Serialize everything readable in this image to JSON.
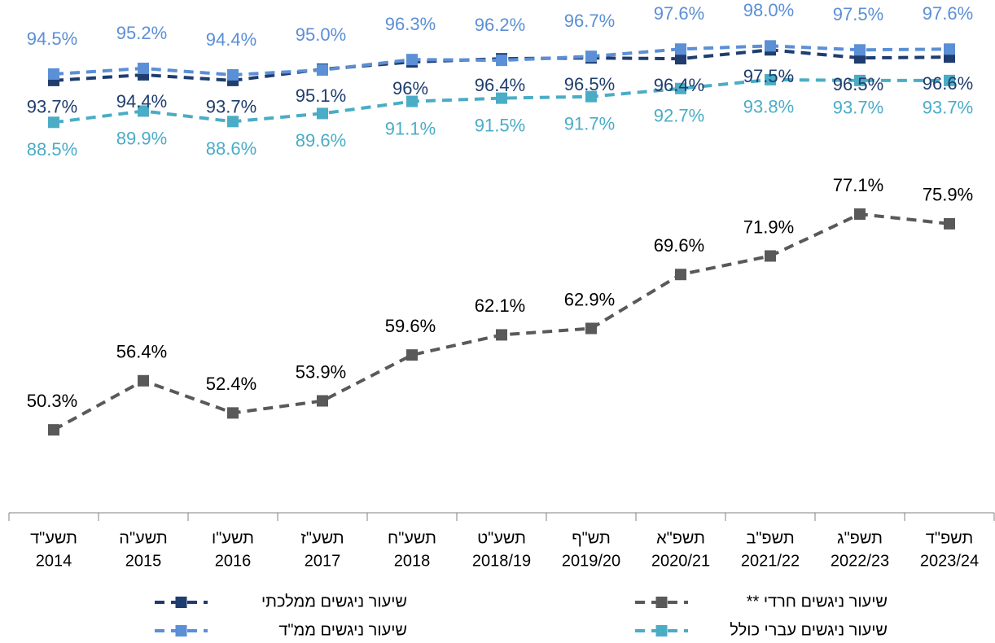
{
  "chart_data": {
    "type": "line",
    "categories": [
      [
        "תשע\"ד",
        "2014"
      ],
      [
        "תשע\"ה",
        "2015"
      ],
      [
        "תשע\"ו",
        "2016"
      ],
      [
        "תשע\"ז",
        "2017"
      ],
      [
        "תשע\"ח",
        "2018"
      ],
      [
        "תשע\"ט",
        "2018/19"
      ],
      [
        "תש\"ף",
        "2019/20"
      ],
      [
        "תשפ\"א",
        "2020/21"
      ],
      [
        "תשפ\"ב",
        "2021/22"
      ],
      [
        "תשפ\"ג",
        "2022/23"
      ],
      [
        "תשפ\"ד",
        "2023/24"
      ]
    ],
    "ylim": [
      40,
      104
    ],
    "series": [
      {
        "name": "שיעור ניגשים ממלכתי",
        "color": "#1f3d6e",
        "values": [
          93.7,
          94.4,
          93.7,
          95.1,
          96,
          96.4,
          96.5,
          96.4,
          97.5,
          96.5,
          96.6
        ],
        "value_labels": [
          "93.7%",
          "94.4%",
          "93.7%",
          "95.1%",
          "96%",
          "96.4%",
          "96.5%",
          "96.4%",
          "97.5%",
          "96.5%",
          "96.6%"
        ]
      },
      {
        "name": "שיעור ניגשים ממ\"ד",
        "color": "#5b8fd6",
        "values": [
          94.5,
          95.2,
          94.4,
          95.0,
          96.3,
          96.2,
          96.7,
          97.6,
          98.0,
          97.5,
          97.6
        ],
        "value_labels": [
          "94.5%",
          "95.2%",
          "94.4%",
          "95.0%",
          "96.3%",
          "96.2%",
          "96.7%",
          "97.6%",
          "98.0%",
          "97.5%",
          "97.6%"
        ]
      },
      {
        "name": "שיעור ניגשים חרדי **",
        "color": "#595959",
        "values": [
          50.3,
          56.4,
          52.4,
          53.9,
          59.6,
          62.1,
          62.9,
          69.6,
          71.9,
          77.1,
          75.9
        ],
        "value_labels": [
          "50.3%",
          "56.4%",
          "52.4%",
          "53.9%",
          "59.6%",
          "62.1%",
          "62.9%",
          "69.6%",
          "71.9%",
          "77.1%",
          "75.9%"
        ]
      },
      {
        "name": "שיעור ניגשים עברי כולל",
        "color": "#4bacc6",
        "values": [
          88.5,
          89.9,
          88.6,
          89.6,
          91.1,
          91.5,
          91.7,
          92.7,
          93.8,
          93.7,
          93.7
        ],
        "value_labels": [
          "88.5%",
          "89.9%",
          "88.6%",
          "89.6%",
          "91.1%",
          "91.5%",
          "91.7%",
          "92.7%",
          "93.8%",
          "93.7%",
          "93.7%"
        ]
      }
    ]
  }
}
